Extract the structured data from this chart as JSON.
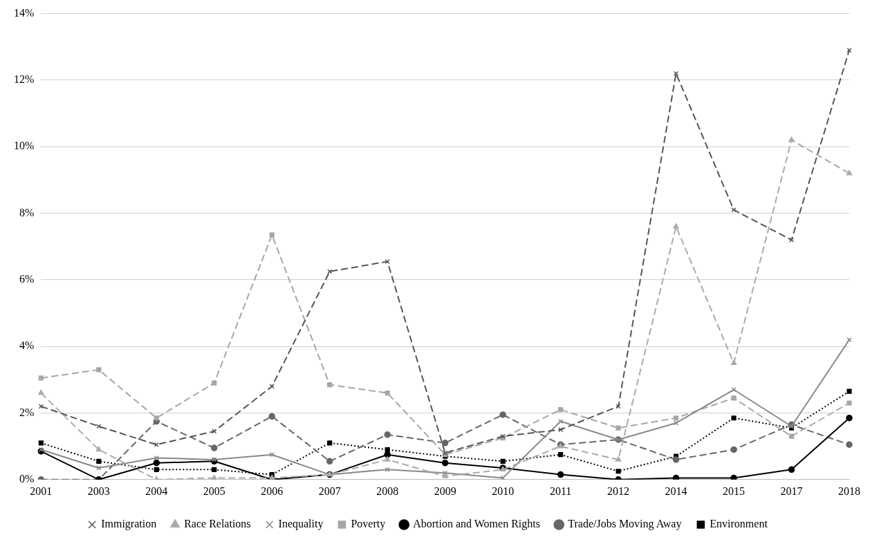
{
  "chart_data": {
    "type": "line",
    "categories": [
      "2001",
      "2003",
      "2004",
      "2005",
      "2006",
      "2007",
      "2008",
      "2009",
      "2010",
      "2011",
      "2012",
      "2014",
      "2015",
      "2017",
      "2018"
    ],
    "series": [
      {
        "name": "Immigration",
        "color": "#555555",
        "marker": "cross",
        "line_style": "dashed",
        "values": [
          2.2,
          1.6,
          1.05,
          1.45,
          2.8,
          6.25,
          6.55,
          0.8,
          1.3,
          1.5,
          2.2,
          12.2,
          8.1,
          7.2,
          12.9
        ]
      },
      {
        "name": "Race Relations",
        "color": "#aaaaaa",
        "marker": "triangle",
        "line_style": "dashed",
        "values": [
          2.6,
          0.9,
          0.0,
          0.05,
          0.05,
          0.15,
          0.6,
          0.1,
          0.3,
          1.0,
          0.6,
          7.6,
          3.5,
          10.2,
          9.2
        ]
      },
      {
        "name": "Inequality",
        "color": "#888888",
        "marker": "cross",
        "line_style": "solid",
        "values": [
          0.9,
          0.35,
          0.65,
          0.6,
          0.75,
          0.15,
          0.3,
          0.2,
          0.05,
          1.75,
          1.2,
          1.7,
          2.7,
          1.6,
          4.2
        ]
      },
      {
        "name": "Poverty",
        "color": "#a6a6a6",
        "marker": "square",
        "line_style": "dashed",
        "values": [
          3.05,
          3.3,
          1.85,
          2.9,
          7.35,
          2.85,
          2.6,
          0.75,
          1.25,
          2.1,
          1.55,
          1.85,
          2.45,
          1.3,
          2.3
        ]
      },
      {
        "name": "Abortion and Women Rights",
        "color": "#000000",
        "marker": "circle",
        "line_style": "solid",
        "values": [
          0.85,
          0.0,
          0.5,
          0.55,
          0.0,
          0.15,
          0.75,
          0.5,
          0.35,
          0.15,
          0.0,
          0.05,
          0.05,
          0.3,
          1.85
        ]
      },
      {
        "name": "Trade/Jobs Moving Away",
        "color": "#666666",
        "marker": "circle",
        "line_style": "dashed",
        "values": [
          0.0,
          0.0,
          1.75,
          0.95,
          1.9,
          0.55,
          1.35,
          1.1,
          1.95,
          1.05,
          1.2,
          0.6,
          0.9,
          1.65,
          1.05
        ]
      },
      {
        "name": "Environment",
        "color": "#000000",
        "marker": "square",
        "line_style": "dotted",
        "values": [
          1.1,
          0.55,
          0.3,
          0.3,
          0.15,
          1.1,
          0.9,
          0.7,
          0.55,
          0.75,
          0.25,
          0.7,
          1.85,
          1.55,
          2.65
        ]
      }
    ],
    "ylim": [
      0,
      14
    ],
    "yticks": [
      {
        "value": 0,
        "label": "0%"
      },
      {
        "value": 2,
        "label": "2%"
      },
      {
        "value": 4,
        "label": "4%"
      },
      {
        "value": 6,
        "label": "6%"
      },
      {
        "value": 8,
        "label": "8%"
      },
      {
        "value": 10,
        "label": "10%"
      },
      {
        "value": 12,
        "label": "12%"
      },
      {
        "value": 14,
        "label": "14%"
      }
    ],
    "grid": "y",
    "legend": "bottom"
  }
}
